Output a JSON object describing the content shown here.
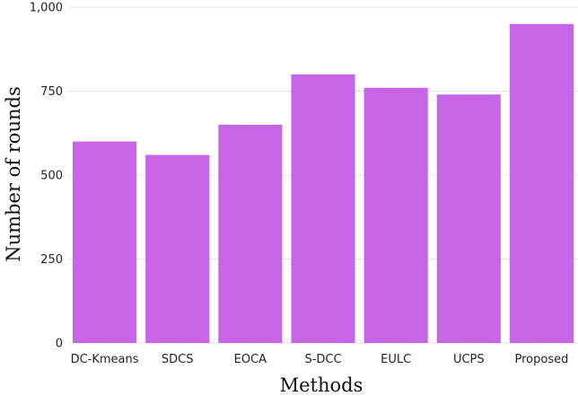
{
  "chart_data": {
    "type": "bar",
    "title": "",
    "xlabel": "Methods",
    "ylabel": "Number of rounds",
    "categories": [
      "DC-Kmeans",
      "SDCS",
      "EOCA",
      "S-DCC",
      "EULC",
      "UCPS",
      "Proposed"
    ],
    "values": [
      600,
      560,
      650,
      800,
      760,
      740,
      950
    ],
    "ylim": [
      0,
      1000
    ],
    "yticks": [
      0,
      250,
      500,
      750,
      1000
    ],
    "ytick_labels": [
      "0",
      "250",
      "500",
      "750",
      "1,000"
    ],
    "grid": "horizontal",
    "legend": "none",
    "bar_color": "#c864e6"
  }
}
